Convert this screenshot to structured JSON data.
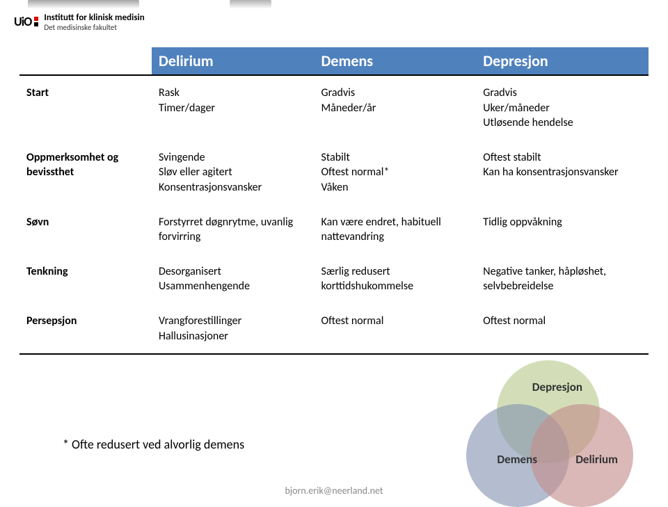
{
  "header": {
    "brand": "UiO",
    "line1": "Institutt for klinisk medisin",
    "line2": "Det medisinske fakultet"
  },
  "table": {
    "header_bg": "#4f81bd",
    "columns": [
      "",
      "Delirium",
      "Demens",
      "Depresjon"
    ],
    "rows": [
      {
        "label": "Start",
        "c1": "Rask\nTimer/dager",
        "c2": "Gradvis\nMåneder/år",
        "c3": "Gradvis\nUker/måneder\nUtløsende hendelse"
      },
      {
        "label": "Oppmerksomhet og bevissthet",
        "c1": "Svingende\nSløv eller agitert\nKonsentrasjonsvansker",
        "c2": "Stabilt\nOftest normal*\nVåken",
        "c3": "Oftest stabilt\nKan ha konsentrasjonsvansker"
      },
      {
        "label": "Søvn",
        "c1": "Forstyrret døgnrytme, uvanlig forvirring",
        "c2": "Kan være endret, habituell nattevandring",
        "c3": "Tidlig oppvåkning"
      },
      {
        "label": "Tenkning",
        "c1": "Desorganisert\nUsammenhengende",
        "c2": "Særlig redusert korttidshukommelse",
        "c3": "Negative tanker, håpløshet, selvbebreidelse"
      },
      {
        "label": "Persepsjon",
        "c1": "Vrangforestillinger\nHallusinasjoner",
        "c2": "Oftest normal",
        "c3": "Oftest normal"
      }
    ]
  },
  "footnote": "* Ofte redusert ved alvorlig demens",
  "footer_email": "bjorn.erik@neerland.net",
  "venn": {
    "colors": {
      "depresjon": "#b8c98d",
      "demens": "#8595b2",
      "delirium": "#c38d8b"
    },
    "opacity": 0.62,
    "labels": {
      "top": "Depresjon",
      "left": "Demens",
      "right": "Delirium"
    },
    "label_color": "#333333"
  }
}
